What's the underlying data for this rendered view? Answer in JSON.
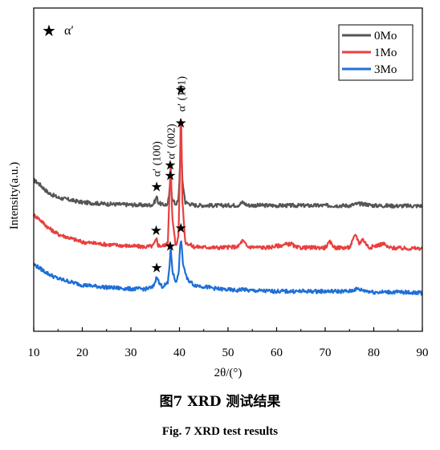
{
  "figure": {
    "caption_cn": "图7    XRD 测试结果",
    "caption_en": "Fig. 7    XRD test results"
  },
  "chart_data": {
    "type": "line",
    "title": "",
    "xlabel": "2θ/(°)",
    "ylabel": "Intensity(a.u.)",
    "xlim": [
      10,
      90
    ],
    "x_ticks": [
      "10",
      "20",
      "30",
      "40",
      "50",
      "60",
      "70",
      "80",
      "90"
    ],
    "y_ticks_labeled": false,
    "grid": false,
    "legend_position": "top-right",
    "marker_legend": {
      "symbol": "★",
      "label": "α′"
    },
    "peak_labels": [
      {
        "text": "α′ (100)",
        "x": 35.2
      },
      {
        "text": "α′ (002)",
        "x": 38.2
      },
      {
        "text": "α′ (101)",
        "x": 40.3
      }
    ],
    "series": [
      {
        "name": "0Mo",
        "color": "#555555",
        "offset": 58,
        "stars_at": [
          35.3,
          38.1,
          40.3
        ],
        "x": [
          10,
          11,
          13,
          15,
          20,
          25,
          30,
          33,
          34.5,
          35.0,
          35.3,
          35.6,
          36.5,
          37.6,
          38.0,
          38.2,
          38.5,
          39.2,
          39.8,
          40.1,
          40.3,
          40.6,
          41.2,
          43,
          48,
          52,
          53,
          54,
          60,
          65,
          70,
          75,
          76.5,
          78,
          80,
          85,
          90
        ],
        "y": [
          20,
          18,
          12,
          9,
          6,
          5,
          4.5,
          4.2,
          4.5,
          7,
          10,
          6,
          4.5,
          4.7,
          14,
          20,
          8,
          4.8,
          7,
          28,
          50,
          20,
          6,
          4.2,
          4,
          4.2,
          6,
          4.2,
          4,
          4,
          4,
          4,
          5,
          5,
          4,
          3.8,
          3.8
        ]
      },
      {
        "name": "1Mo",
        "color": "#e8403f",
        "offset": 30,
        "stars_at": [
          35.2,
          38.1,
          40.3
        ],
        "x": [
          10,
          11,
          13,
          15,
          20,
          25,
          30,
          33,
          34.5,
          35.0,
          35.3,
          35.6,
          36.5,
          37.6,
          38.0,
          38.2,
          38.5,
          39.2,
          39.8,
          40.1,
          40.3,
          40.6,
          41.2,
          43,
          48,
          52,
          53,
          54,
          58,
          63,
          64,
          70,
          71,
          72,
          75,
          76.3,
          77,
          77.7,
          79,
          82,
          83,
          86,
          90
        ],
        "y": [
          26,
          24,
          18,
          14,
          9,
          7.5,
          6.5,
          6,
          6.5,
          9,
          11,
          7,
          6.5,
          8,
          45,
          58,
          25,
          7,
          12,
          55,
          99,
          35,
          9,
          6,
          5.5,
          6,
          10,
          6,
          5.5,
          8,
          5.5,
          5.5,
          9,
          5.5,
          5.5,
          14,
          8,
          11,
          5.5,
          8,
          5.5,
          5,
          5
        ]
      },
      {
        "name": "3Mo",
        "color": "#1f6fd6",
        "offset": 0,
        "stars_at": [
          35.3,
          38.1,
          40.3
        ],
        "x": [
          10,
          11,
          13,
          15,
          20,
          25,
          30,
          33,
          34.5,
          35.0,
          35.4,
          35.8,
          36.5,
          37.6,
          38.0,
          38.2,
          38.6,
          39.2,
          39.8,
          40.1,
          40.3,
          40.7,
          41.5,
          43,
          48,
          52,
          53,
          54,
          60,
          65,
          70,
          75,
          76.5,
          78,
          80,
          85,
          90
        ],
        "y": [
          25,
          23,
          19,
          16,
          12,
          10.5,
          9.5,
          9.5,
          10.5,
          14,
          18,
          13,
          11,
          13,
          26,
          35,
          20,
          14,
          18,
          34,
          42,
          26,
          16,
          12,
          9.5,
          8.5,
          9.5,
          8.5,
          8,
          8,
          8,
          8,
          9.5,
          8.5,
          7.5,
          7.5,
          7
        ]
      }
    ]
  }
}
